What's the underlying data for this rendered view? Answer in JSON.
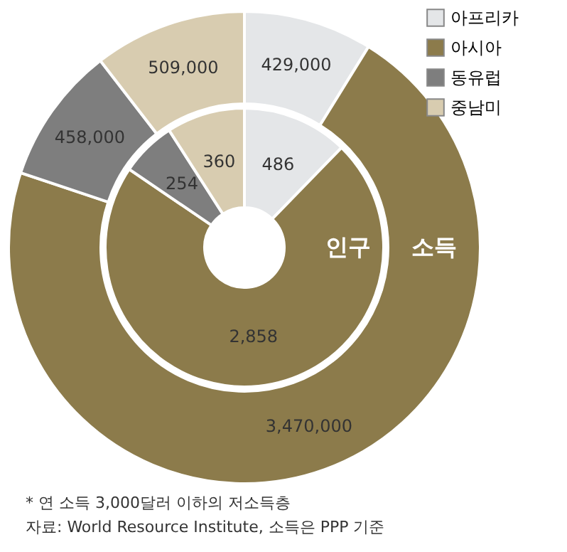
{
  "chart_data": {
    "type": "donut",
    "categories": [
      "아프리카",
      "아시아",
      "동유럽",
      "중남미"
    ],
    "colors": [
      "#e4e6e8",
      "#8c7b4b",
      "#7e7e7e",
      "#d8ccb0"
    ],
    "series": [
      {
        "name": "인구",
        "values": [
          486,
          2858,
          254,
          360
        ],
        "value_labels": [
          "486",
          "2,858",
          "254",
          "360"
        ]
      },
      {
        "name": "소득",
        "values": [
          429000,
          3470000,
          458000,
          509000
        ],
        "value_labels": [
          "429,000",
          "3,470,000",
          "458,000",
          "509,000"
        ]
      }
    ],
    "legend": "top right",
    "annotations": [
      "* 연 소득 3,000달러 이하의 저소득층",
      "자료: World Resource Institute, 소득은 PPP 기준"
    ]
  }
}
